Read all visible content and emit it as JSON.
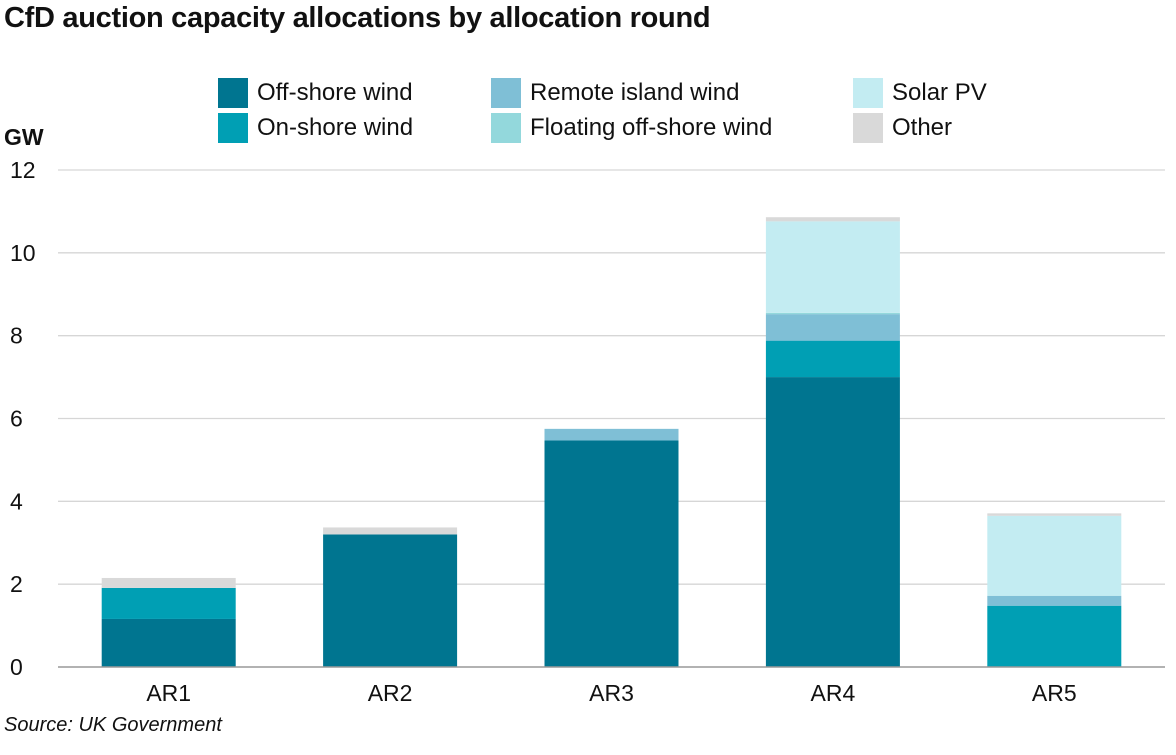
{
  "title": "CfD auction capacity allocations by allocation round",
  "unit_label": "GW",
  "source": "Source: UK Government",
  "colors": {
    "offshore_wind": "#007590",
    "onshore_wind": "#009fb4",
    "remote_island_wind": "#7fbfd6",
    "floating_offshore_wind": "#93d8dc",
    "solar_pv": "#c3ecf2",
    "other": "#d9d9d9",
    "gridline": "#d6d6d6",
    "axis": "#999999"
  },
  "legend": [
    {
      "name": "Off-shore wind",
      "color": "#007590"
    },
    {
      "name": "On-shore wind",
      "color": "#009fb4"
    },
    {
      "name": "Remote island wind",
      "color": "#7fbfd6"
    },
    {
      "name": "Floating off-shore wind",
      "color": "#93d8dc"
    },
    {
      "name": "Solar PV",
      "color": "#c3ecf2"
    },
    {
      "name": "Other",
      "color": "#d9d9d9"
    }
  ],
  "chart_data": {
    "type": "bar",
    "stacked": true,
    "title": "CfD auction capacity allocations by allocation round",
    "xlabel": "",
    "ylabel": "GW",
    "ylim": [
      0,
      12
    ],
    "yticks": [
      0,
      2,
      4,
      6,
      8,
      10,
      12
    ],
    "grid": true,
    "legend_position": "top",
    "categories": [
      "AR1",
      "AR2",
      "AR3",
      "AR4",
      "AR5"
    ],
    "series": [
      {
        "name": "Off-shore wind",
        "color": "#007590",
        "values": [
          1.16,
          3.2,
          5.47,
          7.0,
          0.0
        ]
      },
      {
        "name": "On-shore wind",
        "color": "#009fb4",
        "values": [
          0.75,
          0.0,
          0.0,
          0.88,
          1.48
        ]
      },
      {
        "name": "Remote island wind",
        "color": "#7fbfd6",
        "values": [
          0.0,
          0.0,
          0.28,
          0.64,
          0.24
        ]
      },
      {
        "name": "Floating off-shore wind",
        "color": "#93d8dc",
        "values": [
          0.0,
          0.0,
          0.0,
          0.03,
          0.0
        ]
      },
      {
        "name": "Solar PV",
        "color": "#c3ecf2",
        "values": [
          0.0,
          0.0,
          0.0,
          2.21,
          1.93
        ]
      },
      {
        "name": "Other",
        "color": "#d9d9d9",
        "values": [
          0.24,
          0.17,
          0.0,
          0.1,
          0.06
        ]
      }
    ]
  }
}
